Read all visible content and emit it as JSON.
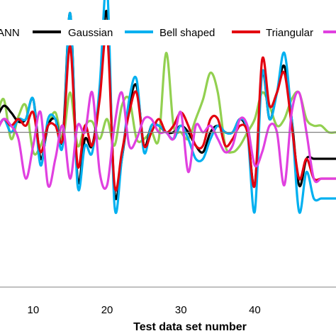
{
  "chart_data": {
    "type": "line",
    "xlabel": "Test data set number",
    "ylabel": "",
    "title": "",
    "xlim": [
      5.5,
      51
    ],
    "ylim": [
      -1.17,
      1.0
    ],
    "x_ticks": [
      "10",
      "20",
      "30",
      "40"
    ],
    "x_tick_values": [
      10,
      20,
      30,
      40
    ],
    "zero_line": true,
    "grid": false,
    "legend_position": "top",
    "series": [
      {
        "name": "ANN",
        "color": "#92d050",
        "x": [
          5,
          6,
          7,
          8,
          9,
          10,
          11,
          12,
          13,
          14,
          15,
          16,
          17,
          18,
          19,
          20,
          21,
          22,
          23,
          24,
          25,
          26,
          27,
          28,
          29,
          30,
          31,
          32,
          33,
          34,
          35,
          36,
          37,
          38,
          39,
          40,
          41,
          42,
          43,
          44,
          45,
          46,
          47,
          48,
          49,
          50,
          51
        ],
        "values": [
          0.1,
          0.25,
          -0.05,
          0.12,
          0.2,
          -0.15,
          -0.1,
          0.05,
          0.15,
          -0.05,
          0.3,
          -0.1,
          0.05,
          0.08,
          -0.05,
          0.1,
          -0.1,
          0.2,
          0.25,
          -0.05,
          -0.05,
          0.0,
          -0.05,
          0.6,
          0.05,
          0.0,
          -0.05,
          0.1,
          0.25,
          0.45,
          0.3,
          -0.1,
          -0.15,
          -0.1,
          0.0,
          0.1,
          0.3,
          0.2,
          0.05,
          0.1,
          0.25,
          0.3,
          0.1,
          0.05,
          0.05,
          0.0,
          0.0
        ]
      },
      {
        "name": "Gaussian",
        "color": "#000000",
        "x": [
          5,
          6,
          7,
          8,
          9,
          10,
          11,
          12,
          13,
          14,
          15,
          16,
          17,
          18,
          19,
          20,
          21,
          22,
          23,
          24,
          25,
          26,
          27,
          28,
          29,
          30,
          31,
          32,
          33,
          34,
          35,
          36,
          37,
          38,
          39,
          40,
          41,
          42,
          43,
          44,
          45,
          46,
          47,
          48,
          49,
          50,
          51
        ],
        "values": [
          0.1,
          0.2,
          0.15,
          0.08,
          0.1,
          0.25,
          -0.2,
          0.05,
          0.1,
          -0.05,
          0.9,
          -0.35,
          -0.05,
          -0.1,
          0.3,
          0.9,
          -0.45,
          -0.2,
          0.2,
          0.35,
          -0.1,
          0.05,
          0.05,
          0.0,
          0.0,
          0.05,
          0.0,
          -0.1,
          -0.15,
          0.0,
          0.05,
          0.0,
          0.0,
          0.1,
          0.0,
          -0.4,
          0.45,
          0.1,
          0.3,
          0.5,
          0.1,
          -0.4,
          -0.2,
          -0.2,
          -0.2,
          -0.2,
          -0.2
        ]
      },
      {
        "name": "Bell shaped",
        "color": "#00b0f0",
        "x": [
          5,
          6,
          7,
          8,
          9,
          10,
          11,
          12,
          13,
          14,
          15,
          16,
          17,
          18,
          19,
          20,
          21,
          22,
          23,
          24,
          25,
          26,
          27,
          28,
          29,
          30,
          31,
          32,
          33,
          34,
          35,
          36,
          37,
          38,
          39,
          40,
          41,
          42,
          43,
          44,
          45,
          46,
          47,
          48,
          49,
          50,
          51
        ],
        "values": [
          0.0,
          0.1,
          0.0,
          0.1,
          0.1,
          0.25,
          -0.25,
          0.1,
          0.1,
          -0.1,
          0.9,
          -0.4,
          -0.1,
          -0.15,
          0.35,
          1.1,
          -0.55,
          -0.2,
          0.25,
          0.4,
          -0.15,
          0.05,
          0.05,
          0.0,
          -0.05,
          0.05,
          -0.05,
          -0.2,
          -0.2,
          -0.05,
          0.05,
          0.0,
          0.0,
          0.1,
          0.0,
          -0.6,
          0.45,
          0.1,
          0.3,
          0.6,
          0.1,
          -0.6,
          -0.3,
          -0.5,
          -0.5,
          -0.5,
          -0.5
        ]
      },
      {
        "name": "Triangular",
        "color": "#e3000f",
        "x": [
          5,
          6,
          7,
          8,
          9,
          10,
          11,
          12,
          13,
          14,
          15,
          16,
          17,
          18,
          19,
          20,
          21,
          22,
          23,
          24,
          25,
          26,
          27,
          28,
          29,
          30,
          31,
          32,
          33,
          34,
          35,
          36,
          37,
          38,
          39,
          40,
          41,
          42,
          43,
          44,
          45,
          46,
          47,
          48,
          49,
          50,
          51
        ],
        "values": [
          0.0,
          0.1,
          0.05,
          0.1,
          0.05,
          0.15,
          -0.15,
          0.05,
          0.05,
          -0.05,
          0.65,
          -0.25,
          0.05,
          -0.1,
          0.25,
          0.75,
          -0.4,
          -0.15,
          0.15,
          0.3,
          -0.1,
          0.0,
          0.1,
          0.0,
          0.05,
          0.15,
          0.05,
          -0.1,
          -0.1,
          0.1,
          0.1,
          -0.1,
          -0.05,
          0.05,
          0.0,
          -0.4,
          0.55,
          0.2,
          0.3,
          0.45,
          0.05,
          -0.35,
          -0.2,
          -0.35,
          -0.35,
          -0.35,
          -0.35
        ]
      },
      {
        "name": "",
        "color": "#e040e0",
        "x": [
          5,
          6,
          7,
          8,
          9,
          10,
          11,
          12,
          13,
          14,
          15,
          16,
          17,
          18,
          19,
          20,
          21,
          22,
          23,
          24,
          25,
          26,
          27,
          28,
          29,
          30,
          31,
          32,
          33,
          34,
          35,
          36,
          37,
          38,
          39,
          40,
          41,
          42,
          43,
          44,
          45,
          46,
          47,
          48,
          49,
          50,
          51
        ],
        "values": [
          0.0,
          0.1,
          0.05,
          -0.05,
          -0.35,
          -0.1,
          0.15,
          -0.4,
          -0.2,
          0.05,
          -0.35,
          0.05,
          0.0,
          0.3,
          -0.3,
          -0.4,
          0.05,
          0.3,
          -0.1,
          -0.05,
          0.1,
          0.1,
          0.0,
          0.0,
          -0.05,
          0.15,
          -0.3,
          0.05,
          0.0,
          0.05,
          -0.05,
          -0.15,
          -0.1,
          0.1,
          0.05,
          -0.25,
          -0.15,
          0.05,
          0.0,
          -0.4,
          0.15,
          0.3,
          0.0,
          -0.35,
          -0.35,
          -0.35,
          -0.35
        ]
      }
    ]
  }
}
